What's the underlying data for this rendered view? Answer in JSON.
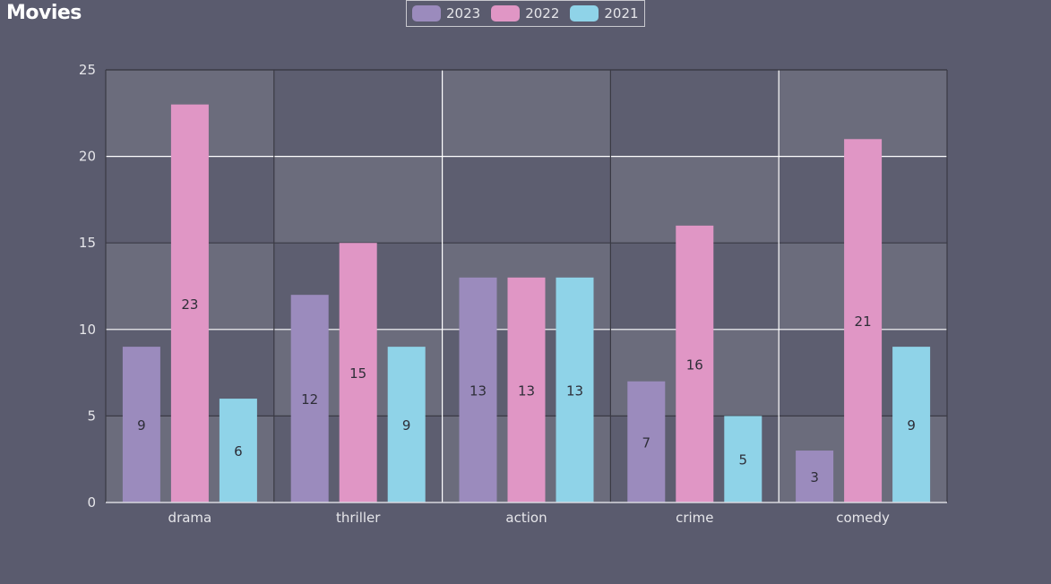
{
  "chart_data": {
    "type": "bar",
    "title": "Movies",
    "categories": [
      "drama",
      "thriller",
      "action",
      "crime",
      "comedy"
    ],
    "series": [
      {
        "name": "2023",
        "values": [
          9,
          12,
          13,
          7,
          3
        ],
        "color": "#9b8bbd"
      },
      {
        "name": "2022",
        "values": [
          23,
          15,
          13,
          16,
          21
        ],
        "color": "#e096c5"
      },
      {
        "name": "2021",
        "values": [
          6,
          9,
          13,
          5,
          9
        ],
        "color": "#8fd3e8"
      }
    ],
    "yticks": [
      "0",
      "5",
      "10",
      "15",
      "20",
      "25"
    ],
    "ylim": [
      0,
      25
    ],
    "xlabel": "",
    "ylabel": "",
    "grid": true,
    "legend_position": "top-center",
    "colors": {
      "background": "#5a5b6e",
      "plot_band_light": "#6b6c7c",
      "plot_band_dark": "#5d5e70",
      "grid_light": "#ffffff",
      "grid_dark": "#3a3a44",
      "text": "#e6e6ea",
      "data_label": "#2e2e38"
    }
  }
}
